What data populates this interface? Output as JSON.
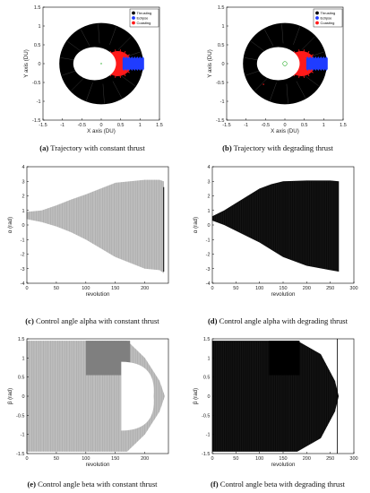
{
  "captions": [
    {
      "tag": "(a)",
      "text": " Trajectory with constant thrust"
    },
    {
      "tag": "(b)",
      "text": " Trajectory with degrading thrust"
    },
    {
      "tag": "(c)",
      "text": " Control angle alpha with constant thrust"
    },
    {
      "tag": "(d)",
      "text": " Control angle alpha with degrading thrust"
    },
    {
      "tag": "(e)",
      "text": " Control angle beta with constant thrust"
    },
    {
      "tag": "(f)",
      "text": " Control angle beta with degrading thrust"
    }
  ],
  "legend": [
    "Thrusting",
    "Eclipse",
    "Coasting"
  ],
  "colors": {
    "thrusting": "#000000",
    "eclipse": "#1f3cff",
    "coasting": "#ff1a1a",
    "gray_band": "#bdbdbd",
    "dark_gray": "#7f7f7f",
    "green": "#22aa22"
  },
  "chart_data": [
    {
      "type": "scatter",
      "panel": "a",
      "xlabel": "X axis (DU)",
      "ylabel": "Y axis (DU)",
      "xlim": [
        -1.5,
        1.5
      ],
      "ylim": [
        -1.5,
        1.5
      ],
      "xticks": [
        "-1.5",
        "-1",
        "-0.5",
        "0",
        "0.5",
        "1",
        "1.5"
      ],
      "yticks": [
        "-1.5",
        "-1",
        "-0.5",
        "0",
        "0.5",
        "1",
        "1.5"
      ],
      "series": [
        {
          "name": "Thrusting"
        },
        {
          "name": "Eclipse"
        },
        {
          "name": "Coasting"
        }
      ],
      "outer_radius": 1.08,
      "inner_ellipse": {
        "cx": -0.17,
        "rx": 0.55,
        "ry": 0.44
      },
      "legend_position": "top-right"
    },
    {
      "type": "scatter",
      "panel": "b",
      "xlabel": "X axis (DU)",
      "ylabel": "Y axis (DU)",
      "xlim": [
        -1.5,
        1.5
      ],
      "ylim": [
        -1.5,
        1.5
      ],
      "xticks": [
        "-1.5",
        "-1",
        "-0.5",
        "0",
        "0.5",
        "1",
        "1.5"
      ],
      "yticks": [
        "-1.5",
        "-1",
        "-0.5",
        "0",
        "0.5",
        "1",
        "1.5"
      ],
      "series": [
        {
          "name": "Thrusting"
        },
        {
          "name": "Eclipse"
        },
        {
          "name": "Coasting"
        }
      ],
      "outer_radius": 1.08,
      "inner_ellipse": {
        "cx": -0.17,
        "rx": 0.55,
        "ry": 0.44
      },
      "legend_position": "top-right"
    },
    {
      "type": "area",
      "panel": "c",
      "xlabel": "revolution",
      "ylabel": "α (rad)",
      "xlim": [
        0,
        240
      ],
      "ylim": [
        -4,
        4
      ],
      "xticks": [
        "0",
        "50",
        "100",
        "150",
        "200"
      ],
      "yticks": [
        "-4",
        "-3",
        "-2",
        "-1",
        "0",
        "1",
        "2",
        "3",
        "4"
      ],
      "upper": [
        [
          0,
          0.9
        ],
        [
          25,
          1.0
        ],
        [
          50,
          1.35
        ],
        [
          75,
          1.75
        ],
        [
          100,
          2.1
        ],
        [
          125,
          2.5
        ],
        [
          150,
          2.9
        ],
        [
          175,
          3.0
        ],
        [
          200,
          3.1
        ],
        [
          225,
          3.1
        ],
        [
          232,
          3.0
        ]
      ],
      "lower": [
        [
          0,
          0.4
        ],
        [
          25,
          0.2
        ],
        [
          50,
          -0.1
        ],
        [
          75,
          -0.5
        ],
        [
          100,
          -1.0
        ],
        [
          125,
          -1.6
        ],
        [
          150,
          -2.2
        ],
        [
          175,
          -2.6
        ],
        [
          200,
          -3.0
        ],
        [
          225,
          -3.1
        ],
        [
          232,
          -3.3
        ]
      ],
      "end_spike": {
        "x": 232,
        "ymin": -3.2,
        "ymax": 2.6
      }
    },
    {
      "type": "area",
      "panel": "d",
      "xlabel": "revolution",
      "ylabel": "α (rad)",
      "xlim": [
        0,
        300
      ],
      "ylim": [
        -4,
        4
      ],
      "xticks": [
        "0",
        "50",
        "100",
        "150",
        "200",
        "250",
        "300"
      ],
      "yticks": [
        "-4",
        "-3",
        "-2",
        "-1",
        "0",
        "1",
        "2",
        "3",
        "4"
      ],
      "upper": [
        [
          0,
          0.6
        ],
        [
          25,
          1.0
        ],
        [
          50,
          1.5
        ],
        [
          75,
          2.0
        ],
        [
          100,
          2.5
        ],
        [
          125,
          2.8
        ],
        [
          150,
          3.0
        ],
        [
          200,
          3.05
        ],
        [
          250,
          3.05
        ],
        [
          268,
          3.0
        ]
      ],
      "lower": [
        [
          0,
          0.3
        ],
        [
          25,
          0.0
        ],
        [
          50,
          -0.4
        ],
        [
          75,
          -0.8
        ],
        [
          100,
          -1.2
        ],
        [
          125,
          -1.7
        ],
        [
          150,
          -2.2
        ],
        [
          200,
          -2.8
        ],
        [
          250,
          -3.1
        ],
        [
          268,
          -3.2
        ]
      ]
    },
    {
      "type": "area",
      "panel": "e",
      "xlabel": "revolution",
      "ylabel": "β (rad)",
      "xlim": [
        0,
        240
      ],
      "ylim": [
        -1.5,
        1.5
      ],
      "xticks": [
        "0",
        "50",
        "100",
        "150",
        "200"
      ],
      "yticks": [
        "-1.5",
        "-1",
        "-0.5",
        "0",
        "0.5",
        "1",
        "1.5"
      ],
      "upper": [
        [
          0,
          1.45
        ],
        [
          120,
          1.45
        ],
        [
          170,
          1.45
        ],
        [
          200,
          1.0
        ],
        [
          225,
          0.4
        ],
        [
          234,
          0.0
        ]
      ],
      "lower": [
        [
          0,
          -1.45
        ],
        [
          120,
          -1.45
        ],
        [
          170,
          -1.45
        ],
        [
          200,
          -1.0
        ],
        [
          225,
          -0.4
        ],
        [
          234,
          0.0
        ]
      ],
      "dark_region": {
        "x0": 100,
        "x1": 175,
        "ymin": 0.55,
        "ymax": 1.45
      },
      "inner_lobe": {
        "x0": 160,
        "x1": 215,
        "ymax": 0.9,
        "ymin": -0.9
      }
    },
    {
      "type": "area",
      "panel": "f",
      "xlabel": "revolution",
      "ylabel": "β (rad)",
      "xlim": [
        0,
        300
      ],
      "ylim": [
        -1.5,
        1.5
      ],
      "xticks": [
        "0",
        "50",
        "100",
        "150",
        "200",
        "250",
        "300"
      ],
      "yticks": [
        "-1.5",
        "-1",
        "-0.5",
        "0",
        "0.5",
        "1",
        "1.5"
      ],
      "upper": [
        [
          0,
          1.45
        ],
        [
          130,
          1.45
        ],
        [
          180,
          1.45
        ],
        [
          230,
          1.1
        ],
        [
          260,
          0.4
        ],
        [
          268,
          0.0
        ]
      ],
      "lower": [
        [
          0,
          -1.45
        ],
        [
          130,
          -1.45
        ],
        [
          180,
          -1.45
        ],
        [
          230,
          -1.1
        ],
        [
          260,
          -0.4
        ],
        [
          268,
          0.0
        ]
      ],
      "dark_region": {
        "x0": 120,
        "x1": 185,
        "ymin": 0.55,
        "ymax": 1.45
      },
      "vline": 265
    }
  ]
}
